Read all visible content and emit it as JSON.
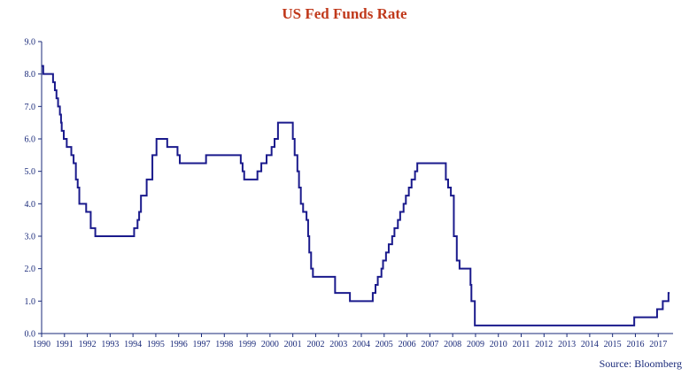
{
  "chart_data": {
    "type": "line",
    "title": "US Fed Funds Rate",
    "source": "Source: Bloomberg",
    "xlabel": "",
    "ylabel": "",
    "xlim": [
      1990,
      2017.65
    ],
    "ylim": [
      0,
      9
    ],
    "grid": false,
    "line_color": "#1a1a8c",
    "axis_color": "#1a2a7a",
    "title_color": "#c0391b",
    "y_ticks": [
      "0.0",
      "1.0",
      "2.0",
      "3.0",
      "4.0",
      "5.0",
      "6.0",
      "7.0",
      "8.0",
      "9.0"
    ],
    "x_ticks": [
      "1990",
      "1991",
      "1992",
      "1993",
      "1994",
      "1995",
      "1996",
      "1997",
      "1998",
      "1999",
      "2000",
      "2001",
      "2002",
      "2003",
      "2004",
      "2005",
      "2006",
      "2007",
      "2008",
      "2009",
      "2010",
      "2011",
      "2012",
      "2013",
      "2014",
      "2015",
      "2016",
      "2017"
    ],
    "series": [
      {
        "values": [
          [
            1990.0,
            8.25
          ],
          [
            1990.07,
            8.0
          ],
          [
            1990.5,
            7.75
          ],
          [
            1990.58,
            7.5
          ],
          [
            1990.65,
            7.25
          ],
          [
            1990.72,
            7.0
          ],
          [
            1990.8,
            6.75
          ],
          [
            1990.85,
            6.5
          ],
          [
            1990.88,
            6.25
          ],
          [
            1990.97,
            6.0
          ],
          [
            1991.1,
            5.75
          ],
          [
            1991.3,
            5.5
          ],
          [
            1991.4,
            5.25
          ],
          [
            1991.5,
            4.75
          ],
          [
            1991.58,
            4.5
          ],
          [
            1991.65,
            4.0
          ],
          [
            1991.95,
            3.75
          ],
          [
            1992.15,
            3.25
          ],
          [
            1992.35,
            3.0
          ],
          [
            1994.05,
            3.25
          ],
          [
            1994.2,
            3.5
          ],
          [
            1994.27,
            3.75
          ],
          [
            1994.35,
            4.25
          ],
          [
            1994.6,
            4.75
          ],
          [
            1994.85,
            5.5
          ],
          [
            1995.03,
            6.0
          ],
          [
            1995.5,
            5.75
          ],
          [
            1995.95,
            5.5
          ],
          [
            1996.05,
            5.25
          ],
          [
            1997.2,
            5.5
          ],
          [
            1998.72,
            5.25
          ],
          [
            1998.8,
            5.0
          ],
          [
            1998.87,
            4.75
          ],
          [
            1999.45,
            5.0
          ],
          [
            1999.62,
            5.25
          ],
          [
            1999.85,
            5.5
          ],
          [
            2000.07,
            5.75
          ],
          [
            2000.2,
            6.0
          ],
          [
            2000.35,
            6.5
          ],
          [
            2001.0,
            6.0
          ],
          [
            2001.08,
            5.5
          ],
          [
            2001.2,
            5.0
          ],
          [
            2001.27,
            4.5
          ],
          [
            2001.35,
            4.0
          ],
          [
            2001.45,
            3.75
          ],
          [
            2001.6,
            3.5
          ],
          [
            2001.67,
            3.0
          ],
          [
            2001.72,
            2.5
          ],
          [
            2001.8,
            2.0
          ],
          [
            2001.88,
            1.75
          ],
          [
            2002.85,
            1.25
          ],
          [
            2003.5,
            1.0
          ],
          [
            2004.5,
            1.25
          ],
          [
            2004.62,
            1.5
          ],
          [
            2004.72,
            1.75
          ],
          [
            2004.88,
            2.0
          ],
          [
            2004.95,
            2.25
          ],
          [
            2005.08,
            2.5
          ],
          [
            2005.2,
            2.75
          ],
          [
            2005.35,
            3.0
          ],
          [
            2005.45,
            3.25
          ],
          [
            2005.6,
            3.5
          ],
          [
            2005.7,
            3.75
          ],
          [
            2005.85,
            4.0
          ],
          [
            2005.95,
            4.25
          ],
          [
            2006.08,
            4.5
          ],
          [
            2006.2,
            4.75
          ],
          [
            2006.35,
            5.0
          ],
          [
            2006.45,
            5.25
          ],
          [
            2007.7,
            4.75
          ],
          [
            2007.8,
            4.5
          ],
          [
            2007.92,
            4.25
          ],
          [
            2008.05,
            3.0
          ],
          [
            2008.07,
            3.0
          ],
          [
            2008.18,
            2.25
          ],
          [
            2008.3,
            2.0
          ],
          [
            2008.78,
            1.5
          ],
          [
            2008.82,
            1.0
          ],
          [
            2008.97,
            0.25
          ],
          [
            2015.95,
            0.5
          ],
          [
            2016.95,
            0.75
          ],
          [
            2017.2,
            1.0
          ],
          [
            2017.45,
            1.25
          ],
          [
            2017.5,
            1.25
          ]
        ]
      }
    ]
  }
}
